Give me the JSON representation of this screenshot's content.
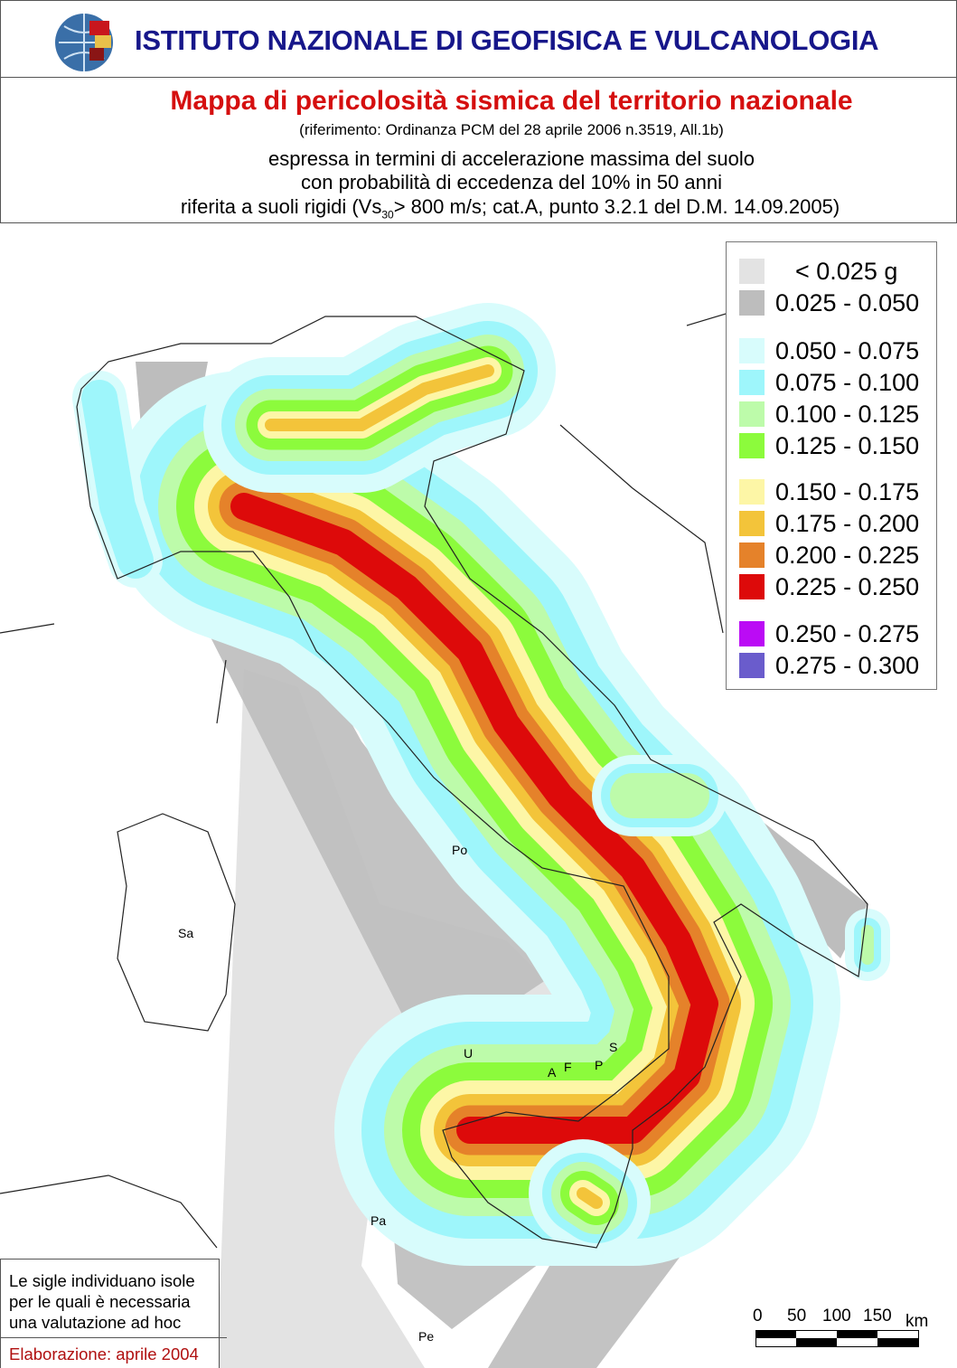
{
  "header": {
    "institute": "ISTITUTO NAZIONALE DI GEOFISICA E VULCANOLOGIA"
  },
  "subheader": {
    "title": "Mappa di pericolosità sismica del territorio nazionale",
    "reference": "(riferimento: Ordinanza PCM del 28 aprile 2006 n.3519, All.1b)",
    "line1": "espressa in termini di accelerazione massima del suolo",
    "line2": "con probabilità di eccedenza del 10% in 50 anni",
    "line3_a": "riferita a suoli rigidi (Vs",
    "line3_sub": "30",
    "line3_b": "> 800 m/s; cat.A, punto 3.2.1 del D.M. 14.09.2005)"
  },
  "legend": {
    "items": [
      {
        "label": "< 0.025 g",
        "color": "#e3e3e3"
      },
      {
        "label": "0.025 - 0.050",
        "color": "#bdbdbd"
      },
      {
        "label": "0.050 - 0.075",
        "color": "#d8fcfc"
      },
      {
        "label": "0.075 - 0.100",
        "color": "#9ef6fb"
      },
      {
        "label": "0.100 - 0.125",
        "color": "#bdfbaa"
      },
      {
        "label": "0.125 - 0.150",
        "color": "#8cfb3c"
      },
      {
        "label": "0.150 - 0.175",
        "color": "#fdf6a6"
      },
      {
        "label": "0.175 - 0.200",
        "color": "#f3c43a"
      },
      {
        "label": "0.200 - 0.225",
        "color": "#e5822a"
      },
      {
        "label": "0.225 - 0.250",
        "color": "#dd0a0a"
      },
      {
        "label": "0.250 - 0.275",
        "color": "#bb0bf5"
      },
      {
        "label": "0.275 - 0.300",
        "color": "#6a5ccc"
      }
    ]
  },
  "islands": [
    "Po",
    "Sa",
    "U",
    "S",
    "A",
    "F",
    "P",
    "Pa",
    "Pe"
  ],
  "note": {
    "text_lines": [
      "Le sigle individuano isole",
      "per le quali è necessaria",
      "una valutazione ad hoc"
    ],
    "elaboration": "Elaborazione: aprile 2004"
  },
  "scale": {
    "labels": [
      "0",
      "50",
      "100",
      "150"
    ],
    "unit": "km"
  }
}
